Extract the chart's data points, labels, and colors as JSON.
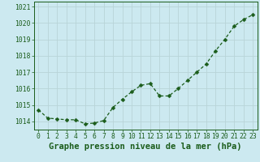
{
  "x": [
    0,
    1,
    2,
    3,
    4,
    5,
    6,
    7,
    8,
    9,
    10,
    11,
    12,
    13,
    14,
    15,
    16,
    17,
    18,
    19,
    20,
    21,
    22,
    23
  ],
  "y": [
    1014.7,
    1014.2,
    1014.15,
    1014.1,
    1014.1,
    1013.85,
    1013.9,
    1014.05,
    1014.85,
    1015.35,
    1015.8,
    1016.2,
    1016.3,
    1015.55,
    1015.55,
    1016.0,
    1016.5,
    1017.0,
    1017.5,
    1018.3,
    1019.0,
    1019.8,
    1020.2,
    1020.5
  ],
  "ylim": [
    1013.5,
    1021.3
  ],
  "yticks": [
    1014,
    1015,
    1016,
    1017,
    1018,
    1019,
    1020,
    1021
  ],
  "xlim": [
    -0.5,
    23.5
  ],
  "xticks": [
    0,
    1,
    2,
    3,
    4,
    5,
    6,
    7,
    8,
    9,
    10,
    11,
    12,
    13,
    14,
    15,
    16,
    17,
    18,
    19,
    20,
    21,
    22,
    23
  ],
  "line_color": "#1a5c1a",
  "marker": "D",
  "marker_size": 2.5,
  "background_color": "#cce9f0",
  "grid_color": "#b8d4d8",
  "xlabel": "Graphe pression niveau de la mer (hPa)",
  "xlabel_color": "#1a5c1a",
  "xlabel_fontsize": 7.5,
  "tick_color": "#1a5c1a",
  "tick_fontsize": 5.8,
  "line_width": 0.9
}
